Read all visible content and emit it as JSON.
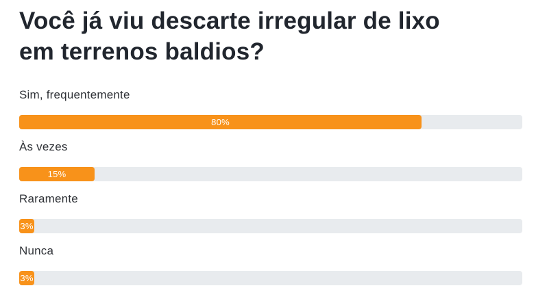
{
  "poll": {
    "question_lines": [
      "Você já viu descarte irregular de lixo",
      "em terrenos baldios?"
    ],
    "options": [
      {
        "label": "Sim, frequentemente",
        "percent": 80,
        "percent_label": "80%"
      },
      {
        "label": "Às vezes",
        "percent": 15,
        "percent_label": "15%"
      },
      {
        "label": "Raramente",
        "percent": 3,
        "percent_label": "3%"
      },
      {
        "label": "Nunca",
        "percent": 3,
        "percent_label": "3%"
      }
    ],
    "colors": {
      "bar_fill": "#F8921A",
      "bar_track": "#E8EBEE",
      "title_text": "#21262E",
      "label_text": "#2F3237",
      "value_text": "#FFFFFF"
    }
  },
  "chart_data": {
    "type": "bar",
    "orientation": "horizontal",
    "title": "Você já viu descarte irregular de lixo em terrenos baldios?",
    "categories": [
      "Sim, frequentemente",
      "Às vezes",
      "Raramente",
      "Nunca"
    ],
    "values": [
      80,
      15,
      3,
      3
    ],
    "value_labels": [
      "80%",
      "15%",
      "3%",
      "3%"
    ],
    "unit": "%",
    "xlim": [
      0,
      100
    ],
    "grid": false,
    "legend": "none",
    "bar_color": "#F8921A",
    "track_color": "#E8EBEE"
  }
}
